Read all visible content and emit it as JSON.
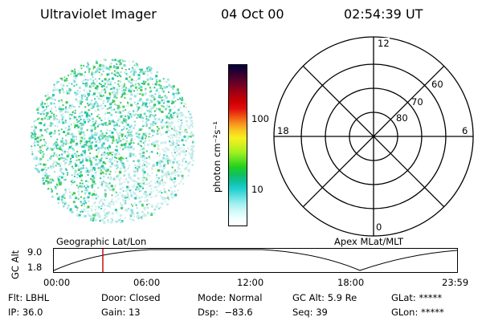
{
  "header": {
    "instrument": "Ultraviolet Imager",
    "date": "04 Oct 00",
    "time": "02:54:39 UT"
  },
  "colorbar": {
    "label": "photon cm⁻²s⁻¹",
    "ticks": [
      "100",
      "10"
    ],
    "colors": [
      "#000040",
      "#2a0030",
      "#55002a",
      "#7f0020",
      "#aa0010",
      "#cc0000",
      "#e01010",
      "#f05010",
      "#f89020",
      "#f8c820",
      "#f8f020",
      "#d0f020",
      "#a0f020",
      "#60e020",
      "#20d020",
      "#10c060",
      "#10c0a0",
      "#20d0d0",
      "#60e0e0",
      "#a0f0f0",
      "#d0f8f8",
      "#f0ffff",
      "#ffffff"
    ]
  },
  "polar_plot": {
    "mlt_labels": {
      "top": "12",
      "left": "18",
      "right": "6",
      "bottom": "0"
    },
    "lat_labels": [
      "60",
      "70",
      "80"
    ]
  },
  "image_panel": {
    "title": "Geographic Lat/Lon"
  },
  "timeline": {
    "left_title": "Geographic Lat/Lon",
    "right_title": "Apex MLat/MLT",
    "ylabel": "GC Alt",
    "y_ticks": [
      "9.0",
      "1.8"
    ],
    "x_ticks": [
      "00:00",
      "06:00",
      "12:00",
      "18:00",
      "23:59"
    ],
    "current_time_fraction": 0.1215
  },
  "status": {
    "filter": "Flt: LBHL",
    "ip": "IP: 36.0",
    "door": "Door: Closed",
    "gain": "Gain: 13",
    "mode": "Mode: Normal",
    "dsp": "Dsp:  −83.6",
    "gc_alt": "GC Alt: 5.9 Re",
    "seq": "Seq: 39",
    "glat": "GLat: *****",
    "glon": "GLon: *****"
  },
  "accent_colors": {
    "marker": "#c00000",
    "dots_primary": "#20c0a0",
    "dots_secondary": "#40d040"
  }
}
